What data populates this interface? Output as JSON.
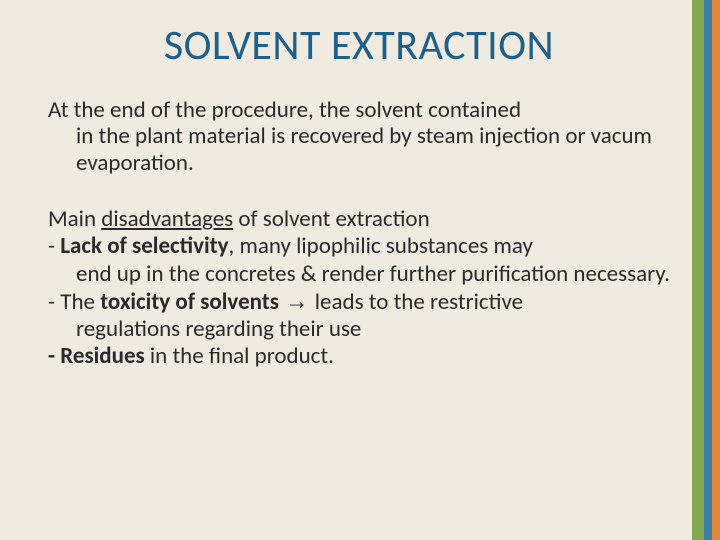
{
  "colors": {
    "background": "#efebe0",
    "title": "#1f5f8b",
    "text": "#2a2a2a",
    "stripe_green": "#7fa850",
    "stripe_blue": "#3a7fa8",
    "stripe_orange": "#e08a3a"
  },
  "typography": {
    "title_fontsize": 42,
    "body_fontsize": 23,
    "font_family": "Calibri"
  },
  "title": "SOLVENT EXTRACTION",
  "paragraph": {
    "line1": "At the end of the procedure, the solvent contained",
    "rest": "in the plant material is recovered by steam injection or vacum evaporation."
  },
  "disadvantages": {
    "lead_prefix": "Main ",
    "lead_underlined": "disadvantages",
    "lead_suffix": " of solvent extraction",
    "item1": {
      "dash": "- ",
      "bold": "Lack of selectivity",
      "after_bold": ", many lipophilic substances may",
      "cont": "end up in the concretes & render further purification necessary."
    },
    "item2": {
      "dash": "- The ",
      "bold": "toxicity of solvents",
      "arrow": " → ",
      "after": " leads to the restrictive",
      "cont": "regulations regarding their use"
    },
    "item3": {
      "dash": "- ",
      "bold": "Residues",
      "after": " in the final product."
    }
  }
}
